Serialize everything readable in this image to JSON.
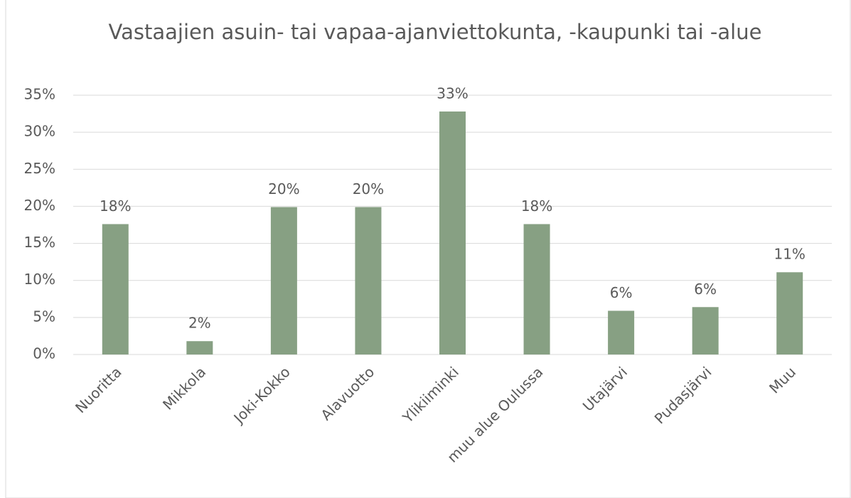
{
  "chart_data": {
    "type": "bar",
    "title": "Vastaajien asuin- tai vapaa-ajanviettokunta, -kaupunki tai -alue",
    "categories": [
      "Nuoritta",
      "Mikkola",
      "Joki-Kokko",
      "Alavuotto",
      "Ylikiiminki",
      "muu alue Oulussa",
      "Utajärvi",
      "Pudasjärvi",
      "Muu"
    ],
    "values": [
      17.6,
      1.8,
      19.9,
      19.9,
      32.8,
      17.6,
      5.9,
      6.4,
      11.1
    ],
    "value_labels": [
      "18%",
      "2%",
      "20%",
      "20%",
      "33%",
      "18%",
      "6%",
      "6%",
      "11%"
    ],
    "color": "#87a083",
    "ylim": [
      0,
      35
    ],
    "yticks": [
      {
        "value": 0,
        "label": "0%"
      },
      {
        "value": 5,
        "label": "5%"
      },
      {
        "value": 10,
        "label": "10%"
      },
      {
        "value": 15,
        "label": "15%"
      },
      {
        "value": 20,
        "label": "20%"
      },
      {
        "value": 25,
        "label": "25%"
      },
      {
        "value": 30,
        "label": "30%"
      },
      {
        "value": 35,
        "label": "35%"
      }
    ],
    "grid": true
  }
}
